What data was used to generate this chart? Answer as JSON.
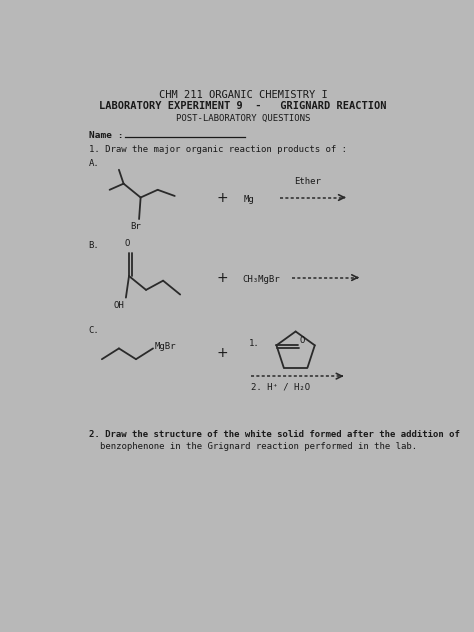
{
  "title1": "CHM 211 ORGANIC CHEMISTRY I",
  "title2": "LABORATORY EXPERIMENT 9  -   GRIGNARD REACTION",
  "title3": "POST-LABORATORY QUESTIONS",
  "bg_color": "#b8b8b8",
  "paper_color": "#dddbd5",
  "text_color": "#1a1a1a",
  "figsize": [
    4.74,
    6.32
  ],
  "dpi": 100
}
